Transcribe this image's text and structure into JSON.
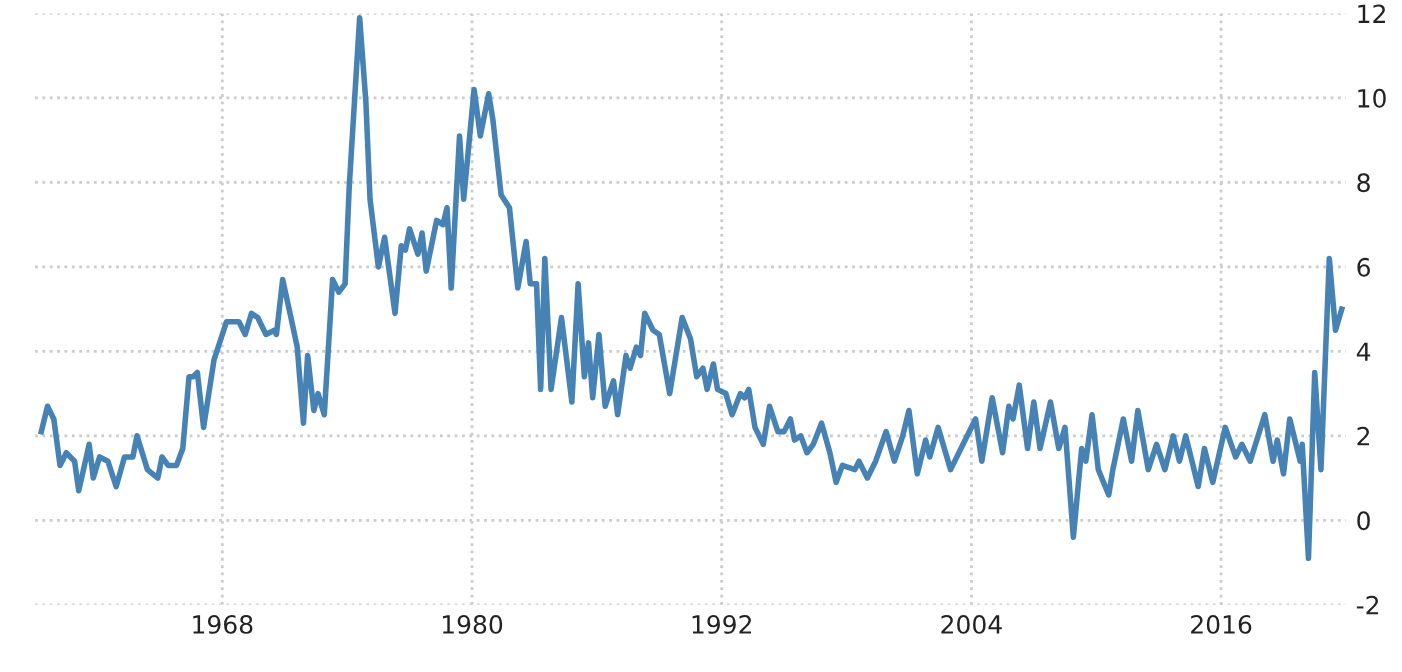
{
  "chart_data": {
    "type": "line",
    "xlim": [
      1959,
      2022
    ],
    "ylim": [
      -2,
      12
    ],
    "xticks": [
      1968,
      1980,
      1992,
      2004,
      2016
    ],
    "yticks": [
      -2,
      0,
      2,
      4,
      6,
      8,
      10,
      12
    ],
    "grid": true,
    "line_style": "solid",
    "marker": "none",
    "series": [
      {
        "color": "#4682b4",
        "x": [
          1959.3,
          1959.6,
          1959.9,
          1960.2,
          1960.5,
          1960.9,
          1961.1,
          1961.6,
          1961.8,
          1962.1,
          1962.5,
          1962.9,
          1963.3,
          1963.7,
          1963.9,
          1964.4,
          1964.9,
          1965.1,
          1965.4,
          1965.8,
          1966.1,
          1966.4,
          1966.6,
          1966.8,
          1967.1,
          1967.6,
          1968.2,
          1968.5,
          1968.8,
          1969.1,
          1969.4,
          1969.7,
          1970.1,
          1970.5,
          1970.6,
          1970.9,
          1971.3,
          1971.6,
          1971.9,
          1972.1,
          1972.4,
          1972.6,
          1972.9,
          1973.3,
          1973.6,
          1973.9,
          1974.1,
          1974.6,
          1974.9,
          1975.1,
          1975.5,
          1975.8,
          1976.3,
          1976.6,
          1976.8,
          1977.0,
          1977.4,
          1977.6,
          1977.8,
          1978.3,
          1978.6,
          1978.8,
          1979.0,
          1979.4,
          1979.6,
          1980.1,
          1980.4,
          1980.8,
          1981.0,
          1981.4,
          1981.8,
          1982.2,
          1982.6,
          1982.8,
          1983.1,
          1983.3,
          1983.5,
          1983.8,
          1984.3,
          1984.8,
          1985.1,
          1985.4,
          1985.6,
          1985.8,
          1986.1,
          1986.4,
          1986.8,
          1987.0,
          1987.4,
          1987.6,
          1987.9,
          1988.1,
          1988.3,
          1988.7,
          1989.0,
          1989.5,
          1990.1,
          1990.5,
          1990.8,
          1991.1,
          1991.3,
          1991.6,
          1991.8,
          1992.2,
          1992.5,
          1992.9,
          1993.1,
          1993.3,
          1993.6,
          1994.0,
          1994.3,
          1994.7,
          1995.0,
          1995.3,
          1995.5,
          1995.8,
          1996.1,
          1996.4,
          1996.8,
          1997.2,
          1997.5,
          1997.8,
          1998.4,
          1998.6,
          1999.0,
          1999.4,
          1999.9,
          2000.3,
          2000.7,
          2001.0,
          2001.4,
          2001.8,
          2002.0,
          2002.4,
          2003.0,
          2003.6,
          2004.2,
          2004.5,
          2005.0,
          2005.5,
          2005.8,
          2006.0,
          2006.3,
          2006.7,
          2007.0,
          2007.3,
          2007.8,
          2008.2,
          2008.5,
          2008.9,
          2009.3,
          2009.5,
          2009.8,
          2010.1,
          2010.6,
          2010.8,
          2011.3,
          2011.7,
          2012.0,
          2012.5,
          2012.9,
          2013.3,
          2013.7,
          2014.0,
          2014.3,
          2014.9,
          2015.2,
          2015.6,
          2016.2,
          2016.7,
          2017.0,
          2017.4,
          2018.1,
          2018.5,
          2018.7,
          2019.0,
          2019.3,
          2019.8,
          2019.9,
          2020.2,
          2020.5,
          2020.8,
          2021.2,
          2021.5,
          2021.8
        ],
        "values": [
          2.1,
          2.7,
          2.4,
          1.3,
          1.6,
          1.4,
          0.7,
          1.8,
          1.0,
          1.5,
          1.4,
          0.8,
          1.5,
          1.5,
          2.0,
          1.2,
          1.0,
          1.5,
          1.3,
          1.3,
          1.7,
          3.4,
          3.4,
          3.5,
          2.2,
          3.8,
          4.7,
          4.7,
          4.7,
          4.4,
          4.9,
          4.8,
          4.4,
          4.5,
          4.4,
          5.7,
          4.8,
          4.1,
          2.3,
          3.9,
          2.6,
          3.0,
          2.5,
          5.7,
          5.4,
          5.6,
          7.9,
          11.9,
          9.9,
          7.6,
          6.0,
          6.7,
          4.9,
          6.5,
          6.4,
          6.9,
          6.3,
          6.8,
          5.9,
          7.1,
          7.0,
          7.4,
          5.5,
          9.1,
          7.6,
          10.2,
          9.1,
          10.1,
          9.5,
          7.7,
          7.4,
          5.5,
          6.6,
          5.6,
          5.6,
          3.1,
          6.2,
          3.1,
          4.8,
          2.8,
          5.6,
          3.4,
          4.2,
          2.9,
          4.4,
          2.7,
          3.3,
          2.5,
          3.9,
          3.6,
          4.1,
          3.9,
          4.9,
          4.5,
          4.4,
          3.0,
          4.8,
          4.3,
          3.4,
          3.6,
          3.1,
          3.7,
          3.1,
          3.0,
          2.5,
          3.0,
          2.9,
          3.1,
          2.2,
          1.8,
          2.7,
          2.1,
          2.1,
          2.4,
          1.9,
          2.0,
          1.6,
          1.8,
          2.3,
          1.6,
          0.9,
          1.3,
          1.2,
          1.4,
          1.0,
          1.4,
          2.1,
          1.4,
          2.0,
          2.6,
          1.1,
          1.9,
          1.5,
          2.2,
          1.2,
          1.8,
          2.4,
          1.4,
          2.9,
          1.6,
          2.7,
          2.4,
          3.2,
          1.7,
          2.8,
          1.7,
          2.8,
          1.7,
          2.2,
          -0.4,
          1.7,
          1.4,
          2.5,
          1.2,
          0.6,
          1.2,
          2.4,
          1.4,
          2.6,
          1.2,
          1.8,
          1.2,
          2.0,
          1.4,
          2.0,
          0.8,
          1.7,
          0.9,
          2.2,
          1.5,
          1.8,
          1.4,
          2.5,
          1.4,
          1.9,
          1.1,
          2.4,
          1.4,
          1.8,
          -0.9,
          3.5,
          1.2,
          6.2,
          4.5,
          5.0
        ]
      }
    ]
  }
}
